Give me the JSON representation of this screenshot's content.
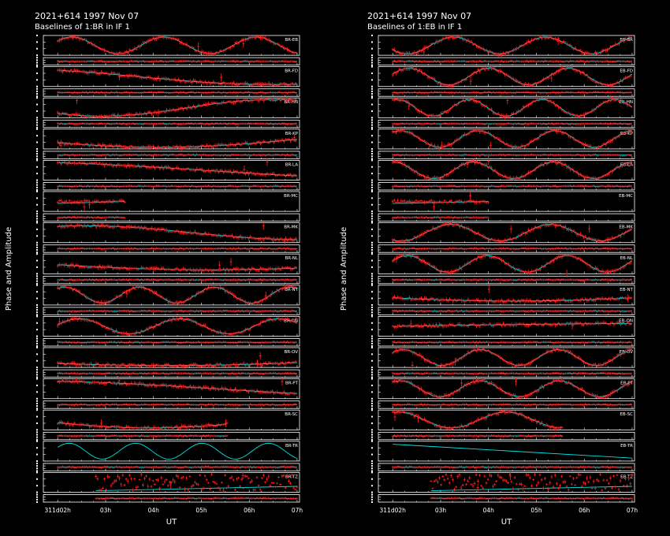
{
  "chart_data": [
    {
      "type": "scatter",
      "title": "2021+614  1997 Nov 07",
      "subtitle": "Baselines of 1:BR in IF 1",
      "ylabel": "Phase and Amplitude",
      "xlabel": "UT",
      "x_ticks": [
        {
          "hour": 2,
          "label": "311d02h"
        },
        {
          "hour": 3,
          "label": "03h"
        },
        {
          "hour": 4,
          "label": "04h"
        },
        {
          "hour": 5,
          "label": "05h"
        },
        {
          "hour": 6,
          "label": "06h"
        },
        {
          "hour": 7,
          "label": "07h"
        }
      ],
      "xlim": [
        1.7,
        7.05
      ],
      "baselines": [
        {
          "label": "BR-EB",
          "cycles": 2.6,
          "phase": 0.6,
          "amp": 0.42,
          "start": 2.0,
          "end": 7.0,
          "model": "matched"
        },
        {
          "label": "BR-FD",
          "cycles": 0.45,
          "phase": 2.2,
          "amp": 0.4,
          "start": 2.0,
          "end": 7.0,
          "model": "matched"
        },
        {
          "label": "BR-HN",
          "cycles": 0.7,
          "phase": 3.9,
          "amp": 0.42,
          "start": 2.0,
          "end": 7.0,
          "model": "matched"
        },
        {
          "label": "BR-KP",
          "cycles": 0.42,
          "phase": 3.6,
          "amp": 0.42,
          "start": 2.0,
          "end": 7.0,
          "model": "matched"
        },
        {
          "label": "BR-LA",
          "cycles": 0.3,
          "phase": 2.0,
          "amp": 0.42,
          "start": 2.0,
          "end": 7.0,
          "model": "matched"
        },
        {
          "label": "BR-MC",
          "cycles": 0.0,
          "phase": 0.0,
          "amp": 0.0,
          "start": 2.0,
          "end": 3.4,
          "model": "flat"
        },
        {
          "label": "BR-MK",
          "cycles": 0.55,
          "phase": 1.2,
          "amp": 0.35,
          "start": 2.0,
          "end": 7.0,
          "model": "matched"
        },
        {
          "label": "BR-NL",
          "cycles": 0.35,
          "phase": 3.3,
          "amp": 0.3,
          "start": 2.0,
          "end": 7.0,
          "model": "matched"
        },
        {
          "label": "BR-NT",
          "cycles": 3.2,
          "phase": 1.0,
          "amp": 0.4,
          "start": 2.0,
          "end": 7.0,
          "model": "matched"
        },
        {
          "label": "BR-ON",
          "cycles": 2.4,
          "phase": 0.2,
          "amp": 0.38,
          "start": 2.0,
          "end": 7.0,
          "model": "matched"
        },
        {
          "label": "BR-OV",
          "cycles": 0.25,
          "phase": 4.0,
          "amp": 0.4,
          "start": 2.0,
          "end": 7.0,
          "model": "matched"
        },
        {
          "label": "BR-PT",
          "cycles": 0.3,
          "phase": 1.9,
          "amp": 0.4,
          "start": 2.0,
          "end": 7.0,
          "model": "matched"
        },
        {
          "label": "BR-SC",
          "cycles": 0.5,
          "phase": 3.5,
          "amp": 0.4,
          "start": 2.0,
          "end": 5.55,
          "model": "matched"
        },
        {
          "label": "BR-TR",
          "cycles": 3.6,
          "phase": 0.5,
          "amp": 0.4,
          "start": 2.0,
          "end": 7.0,
          "model": "model-only"
        },
        {
          "label": "BR-TZ",
          "cycles": 0.0,
          "phase": 0.0,
          "amp": 0.0,
          "start": 2.8,
          "end": 7.0,
          "model": "noisy"
        }
      ]
    },
    {
      "type": "scatter",
      "title": "2021+614  1997 Nov 07",
      "subtitle": "Baselines of 1:EB in IF 1",
      "ylabel": "Phase and Amplitude",
      "xlabel": "UT",
      "x_ticks": [
        {
          "hour": 2,
          "label": "311d02h"
        },
        {
          "hour": 3,
          "label": "03h"
        },
        {
          "hour": 4,
          "label": "04h"
        },
        {
          "hour": 5,
          "label": "05h"
        },
        {
          "hour": 6,
          "label": "06h"
        },
        {
          "hour": 7,
          "label": "07h"
        }
      ],
      "xlim": [
        1.7,
        7.05
      ],
      "baselines": [
        {
          "label": "EB-BR",
          "cycles": 2.6,
          "phase": 3.7,
          "amp": 0.42,
          "start": 2.0,
          "end": 7.0,
          "model": "matched"
        },
        {
          "label": "EB-FD",
          "cycles": 3.0,
          "phase": 0.3,
          "amp": 0.42,
          "start": 2.0,
          "end": 7.0,
          "model": "matched"
        },
        {
          "label": "EB-HN",
          "cycles": 3.3,
          "phase": 1.2,
          "amp": 0.42,
          "start": 2.0,
          "end": 7.0,
          "model": "matched"
        },
        {
          "label": "EB-KP",
          "cycles": 3.1,
          "phase": 0.9,
          "amp": 0.42,
          "start": 2.0,
          "end": 7.0,
          "model": "matched"
        },
        {
          "label": "EB-LA",
          "cycles": 3.0,
          "phase": 1.5,
          "amp": 0.42,
          "start": 2.0,
          "end": 7.0,
          "model": "matched"
        },
        {
          "label": "EB-MC",
          "cycles": 0.0,
          "phase": 0.0,
          "amp": 0.0,
          "start": 2.0,
          "end": 4.0,
          "model": "flat"
        },
        {
          "label": "EB-MK",
          "cycles": 2.4,
          "phase": 4.2,
          "amp": 0.42,
          "start": 2.0,
          "end": 7.0,
          "model": "matched"
        },
        {
          "label": "EB-NL",
          "cycles": 3.0,
          "phase": 0.4,
          "amp": 0.42,
          "start": 2.0,
          "end": 7.0,
          "model": "matched"
        },
        {
          "label": "EB-NT",
          "cycles": 0.35,
          "phase": 3.6,
          "amp": 0.3,
          "start": 2.0,
          "end": 7.0,
          "model": "matched"
        },
        {
          "label": "EB-ON",
          "cycles": 0.2,
          "phase": 0.0,
          "amp": 0.15,
          "start": 2.0,
          "end": 7.0,
          "model": "matched"
        },
        {
          "label": "EB-OV",
          "cycles": 3.1,
          "phase": 0.7,
          "amp": 0.4,
          "start": 2.0,
          "end": 7.0,
          "model": "matched"
        },
        {
          "label": "EB-PT",
          "cycles": 3.0,
          "phase": 1.0,
          "amp": 0.4,
          "start": 2.0,
          "end": 7.0,
          "model": "matched"
        },
        {
          "label": "EB-SC",
          "cycles": 2.2,
          "phase": 1.3,
          "amp": 0.4,
          "start": 2.0,
          "end": 5.55,
          "model": "matched"
        },
        {
          "label": "EB-TR",
          "cycles": 0.0,
          "phase": 0.0,
          "amp": 0.0,
          "start": 2.0,
          "end": 7.0,
          "model": "model-only"
        },
        {
          "label": "EB-TZ",
          "cycles": 0.0,
          "phase": 0.0,
          "amp": 0.0,
          "start": 2.8,
          "end": 7.0,
          "model": "noisy"
        }
      ]
    }
  ],
  "colors": {
    "data": "#ff2020",
    "model": "#00e5e5",
    "axes": "#ffffff",
    "background": "#000000"
  }
}
